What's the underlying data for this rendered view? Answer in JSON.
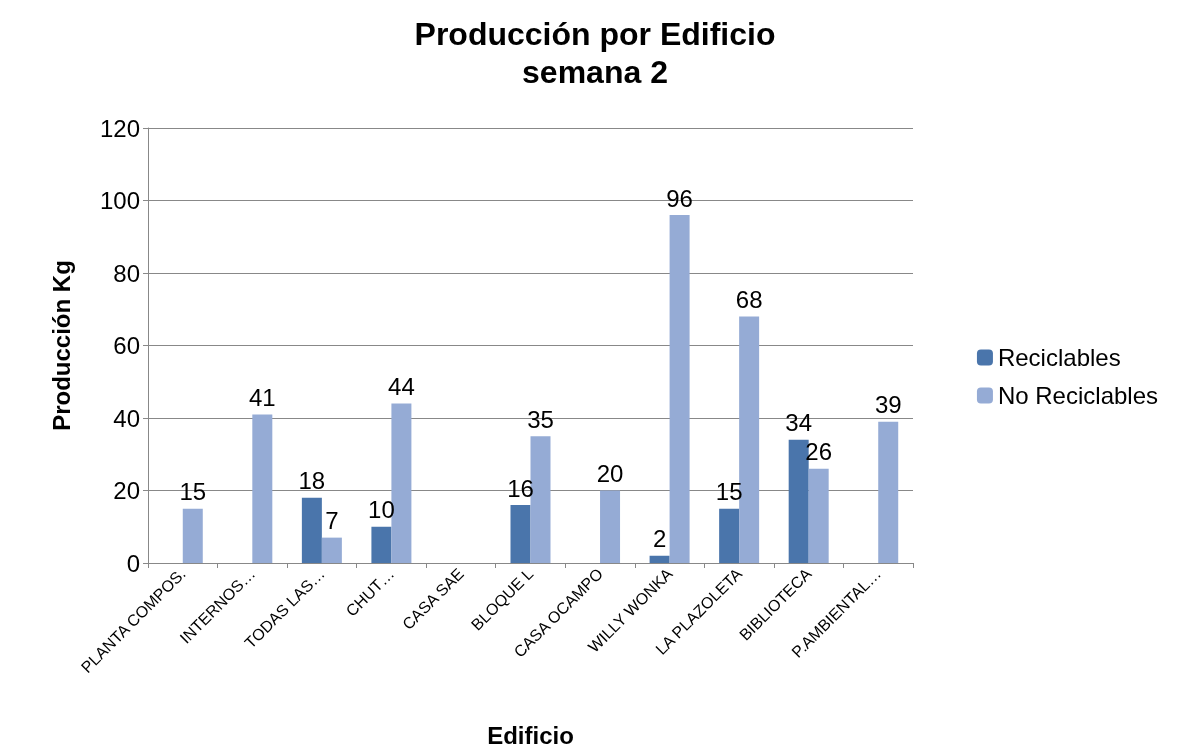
{
  "chart_data": {
    "type": "bar",
    "title": "Producción por Edificio\nsemana 2",
    "xlabel": "Edificio",
    "ylabel": "Producción Kg",
    "categories": [
      "PLANTA COMPOS.",
      "INTERNOS…",
      "TODAS LAS…",
      "CHUT…",
      "CASA SAE",
      "BLOQUE L",
      "CASA OCAMPO",
      "WILLY WONKA",
      "LA PLAZOLETA",
      "BIBLIOTECA",
      "P.AMBIENTAL…"
    ],
    "series": [
      {
        "name": "Reciclables",
        "color": "#4a75ab",
        "values": [
          null,
          null,
          18,
          10,
          null,
          16,
          null,
          2,
          15,
          34,
          null
        ]
      },
      {
        "name": "No Reciclables",
        "color": "#95abd5",
        "values": [
          15,
          41,
          7,
          44,
          null,
          35,
          20,
          96,
          68,
          26,
          39
        ]
      }
    ],
    "ylim": [
      0,
      120
    ],
    "yticks": [
      0,
      20,
      40,
      60,
      80,
      100,
      120
    ],
    "grid": "y",
    "legend": "right",
    "data_labels": true
  }
}
